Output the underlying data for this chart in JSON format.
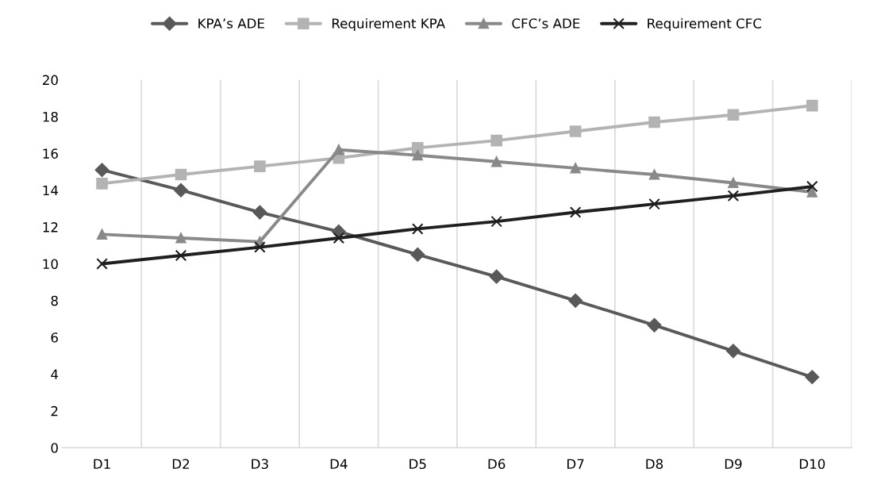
{
  "chart_data": {
    "type": "line",
    "categories": [
      "D1",
      "D2",
      "D3",
      "D4",
      "D5",
      "D6",
      "D7",
      "D8",
      "D9",
      "D10"
    ],
    "series": [
      {
        "name": "KPA’s ADE",
        "color": "#595959",
        "marker": "diamond",
        "values": [
          15.1,
          14.0,
          12.8,
          11.75,
          10.5,
          9.3,
          8.0,
          6.66,
          5.26,
          3.84
        ]
      },
      {
        "name": "Requirement KPA",
        "color": "#b3b3b3",
        "marker": "square",
        "values": [
          14.36,
          14.85,
          15.3,
          15.75,
          16.3,
          16.7,
          17.2,
          17.7,
          18.1,
          18.6
        ]
      },
      {
        "name": "CFC’s ADE",
        "color": "#898989",
        "marker": "triangle",
        "values": [
          11.6,
          11.4,
          11.2,
          16.2,
          15.9,
          15.55,
          15.2,
          14.85,
          14.4,
          13.9
        ]
      },
      {
        "name": "Requirement CFC",
        "color": "#1f1f1f",
        "marker": "cross",
        "values": [
          10.0,
          10.45,
          10.9,
          11.4,
          11.9,
          12.3,
          12.8,
          13.25,
          13.7,
          14.2
        ]
      }
    ],
    "ylim": [
      0,
      20
    ],
    "yticks": [
      0,
      2,
      4,
      6,
      8,
      10,
      12,
      14,
      16,
      18,
      20
    ],
    "grid": "x",
    "legend": "top",
    "line_style": "solid"
  }
}
